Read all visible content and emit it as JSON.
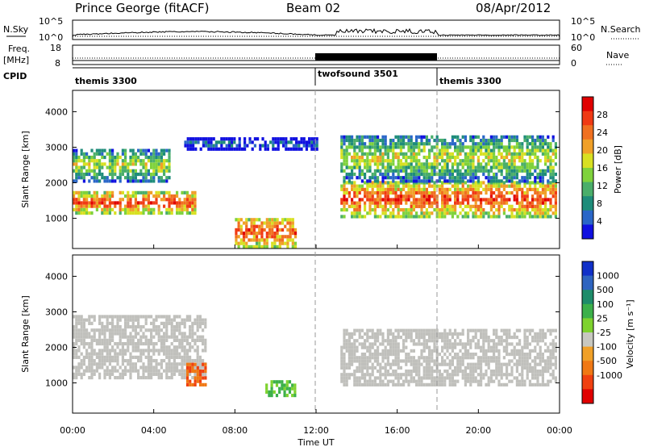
{
  "header": {
    "station": "Prince George (fitACF)",
    "beam": "Beam 02",
    "date": "08/Apr/2012"
  },
  "colors": {
    "power_scale": [
      "#1010e0",
      "#2a66c8",
      "#1e8c7a",
      "#4aae6a",
      "#7fd23c",
      "#d8e022",
      "#f0a028",
      "#f07020",
      "#f03a14",
      "#e00000"
    ],
    "velocity_scale": [
      "#1030c8",
      "#2e64c0",
      "#1e8c6a",
      "#3cb04a",
      "#7ed22e",
      "#c8c8c0",
      "#f0a028",
      "#f07814",
      "#f04010",
      "#e00000"
    ],
    "ground_scatter": "#c0c0bc",
    "cpid_bar": "#000000"
  },
  "top_panels": {
    "nsky": {
      "label": "N.Sky",
      "ticks": [
        "10^5",
        "10^0"
      ],
      "right_label": "N.Search",
      "right_ticks": [
        "10^5",
        "10^0"
      ]
    },
    "freq": {
      "label": "Freq.",
      "unit": "[MHz]",
      "ticks": [
        "18",
        "8"
      ],
      "right_label": "Nave",
      "right_ticks": [
        "60",
        "0"
      ]
    },
    "cpid": {
      "label": "CPID",
      "segments": [
        {
          "name": "themis 3300",
          "start_h": 0,
          "end_h": 12
        },
        {
          "name": "twofsound 3501",
          "start_h": 12,
          "end_h": 18
        },
        {
          "name": "themis 3300",
          "start_h": 18,
          "end_h": 24
        }
      ]
    }
  },
  "chart_data": [
    {
      "type": "heatmap",
      "title": "",
      "quantity": "Power",
      "xlabel": "Time UT",
      "ylabel": "Slant Range [km]",
      "colorbar_label": "Power [dB]",
      "colorbar_ticks": [
        "4",
        "8",
        "12",
        "16",
        "20",
        "24",
        "28"
      ],
      "xlim": [
        0,
        24
      ],
      "ylim": [
        150,
        4600
      ],
      "y_ticks": [
        1000,
        2000,
        3000,
        4000
      ],
      "echo_bands": [
        {
          "start_h": 0.0,
          "end_h": 6.0,
          "range_km": [
            1100,
            1700
          ],
          "level": "strong",
          "note": "main echo band"
        },
        {
          "start_h": 0.0,
          "end_h": 4.8,
          "range_km": [
            2000,
            2900
          ],
          "level": "moderate"
        },
        {
          "start_h": 5.5,
          "end_h": 12.0,
          "range_km": [
            2900,
            3200
          ],
          "level": "weak"
        },
        {
          "start_h": 8.0,
          "end_h": 11.0,
          "range_km": [
            150,
            1000
          ],
          "level": "strong"
        },
        {
          "start_h": 13.2,
          "end_h": 24.0,
          "range_km": [
            1000,
            2000
          ],
          "level": "strong"
        },
        {
          "start_h": 13.2,
          "end_h": 24.0,
          "range_km": [
            2000,
            3300
          ],
          "level": "moderate"
        }
      ]
    },
    {
      "type": "heatmap",
      "title": "",
      "quantity": "Velocity",
      "xlabel": "Time UT",
      "ylabel": "Slant Range [km]",
      "colorbar_label": "Velocity [m s⁻¹]",
      "colorbar_ticks": [
        "1000",
        "500",
        "100",
        "25",
        "-25",
        "-100",
        "-500",
        "-1000"
      ],
      "xlim": [
        0,
        24
      ],
      "ylim": [
        150,
        4600
      ],
      "y_ticks": [
        1000,
        2000,
        3000,
        4000
      ],
      "echo_bands": [
        {
          "start_h": 0.0,
          "end_h": 6.5,
          "range_km": [
            1100,
            2900
          ],
          "level": "ground scatter"
        },
        {
          "start_h": 5.6,
          "end_h": 6.5,
          "range_km": [
            900,
            1500
          ],
          "level": "-500 m/s"
        },
        {
          "start_h": 9.5,
          "end_h": 11.0,
          "range_km": [
            600,
            1000
          ],
          "level": "100 m/s"
        },
        {
          "start_h": 13.2,
          "end_h": 24.0,
          "range_km": [
            900,
            2500
          ],
          "level": "ground scatter"
        }
      ]
    }
  ],
  "xaxis": {
    "ticks": [
      "00:00",
      "04:00",
      "08:00",
      "12:00",
      "16:00",
      "20:00",
      "00:00"
    ],
    "label": "Time UT"
  }
}
